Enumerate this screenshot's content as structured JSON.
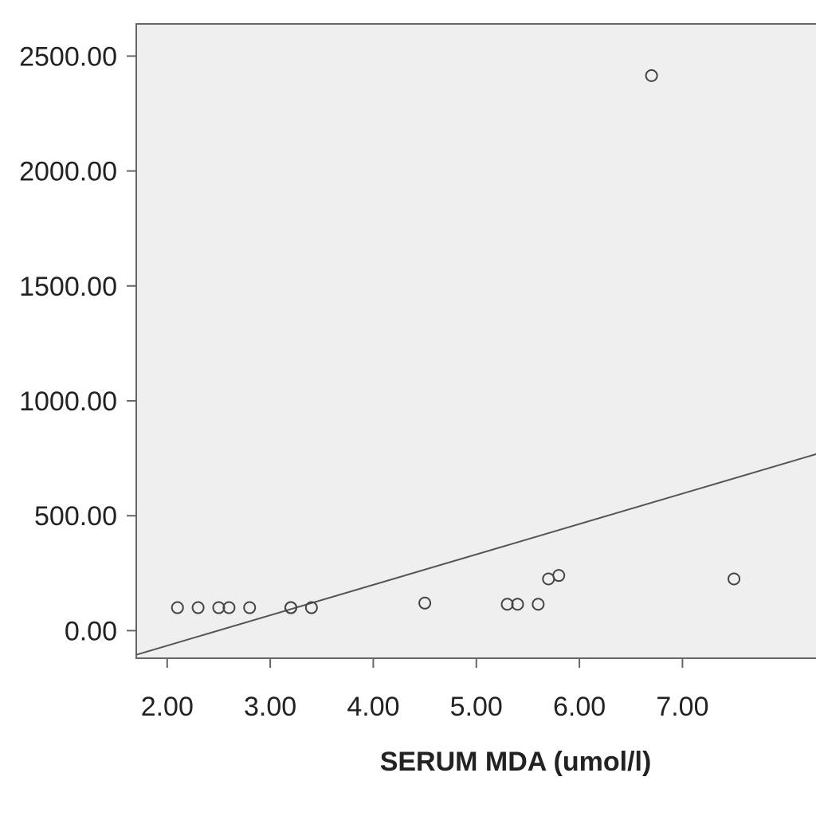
{
  "chart_data": {
    "type": "scatter",
    "title": "",
    "xlabel": "SERUM MDA (umol/l)",
    "ylabel": "",
    "xlim": [
      1.7,
      8.35
    ],
    "ylim": [
      -120,
      2640
    ],
    "x_ticks": [
      2,
      3,
      4,
      5,
      6,
      7
    ],
    "x_tick_labels": [
      "2.00",
      "3.00",
      "4.00",
      "5.00",
      "6.00",
      "7.00"
    ],
    "y_ticks": [
      0,
      500,
      1000,
      1500,
      2000,
      2500
    ],
    "y_tick_labels": [
      "0.00",
      "500.00",
      "1000.00",
      "1500.00",
      "2000.00",
      "2500.00"
    ],
    "grid": false,
    "series": [
      {
        "x": [
          2.1,
          2.3,
          2.5,
          2.6,
          2.8,
          3.2,
          3.2,
          3.4,
          4.5,
          5.3,
          5.4,
          5.6,
          5.7,
          5.8,
          6.7,
          7.5
        ],
        "y": [
          100,
          100,
          100,
          100,
          100,
          100,
          100,
          100,
          120,
          115,
          115,
          115,
          225,
          240,
          2415,
          225
        ]
      }
    ],
    "fit_line": {
      "x": [
        1.7,
        8.35
      ],
      "y": [
        -105,
        775
      ]
    },
    "colors": {
      "plot_background": "#efefef",
      "marker_stroke": "#444444",
      "line": "#555555",
      "frame": "#666666",
      "text": "#222222"
    }
  }
}
